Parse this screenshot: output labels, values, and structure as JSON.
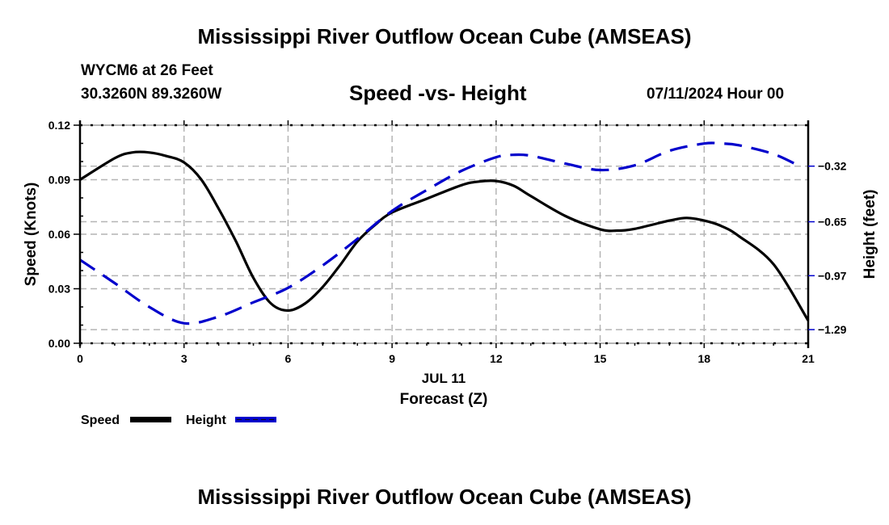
{
  "header": {
    "main_title": "Mississippi River Outflow Ocean Cube (AMSEAS)",
    "station": "WYCM6 at 26 Feet",
    "coordinates": "30.3260N  89.3260W",
    "chart_title": "Speed -vs- Height",
    "datetime": "07/11/2024 Hour 00"
  },
  "footer": {
    "title": "Mississippi River Outflow Ocean Cube (AMSEAS)"
  },
  "chart_data": {
    "type": "line",
    "title": "Speed -vs- Height",
    "xlabel": "Forecast (Z)",
    "xlabel_date": "JUL 11",
    "ylabel": "Speed (Knots)",
    "y2label": "Height (feet)",
    "xlim": [
      0,
      21
    ],
    "ylim": [
      0,
      0.12
    ],
    "y2lim": [
      -1.371,
      -0.077
    ],
    "x_ticks": [
      0,
      3,
      6,
      9,
      12,
      15,
      18,
      21
    ],
    "x_tick_labels": [
      "0",
      "3",
      "6",
      "9",
      "12",
      "15",
      "18",
      "21"
    ],
    "y_ticks": [
      0.0,
      0.03,
      0.06,
      0.09,
      0.12
    ],
    "y_tick_labels": [
      "0.00",
      "0.03",
      "0.06",
      "0.09",
      "0.12"
    ],
    "y2_ticks": [
      -0.32,
      -0.65,
      -0.97,
      -1.29
    ],
    "y2_tick_labels": [
      "−0.32",
      "−0.65",
      "−0.97",
      "−1.29"
    ],
    "grid": true,
    "legend_position": "bottom-left",
    "series": [
      {
        "name": "Speed",
        "axis": "left",
        "color": "#000000",
        "style": "solid",
        "x": [
          0,
          1,
          1.5,
          2,
          2.5,
          3,
          3.5,
          4,
          4.5,
          5,
          5.5,
          6,
          6.5,
          7,
          7.5,
          8,
          8.5,
          9,
          10,
          11,
          11.5,
          12,
          12.5,
          13,
          14,
          15,
          15.5,
          16,
          17,
          17.5,
          18,
          18.5,
          19,
          20,
          21
        ],
        "values": [
          0.09,
          0.1018,
          0.105,
          0.105,
          0.103,
          0.0995,
          0.09,
          0.074,
          0.056,
          0.036,
          0.022,
          0.018,
          0.022,
          0.031,
          0.043,
          0.056,
          0.065,
          0.072,
          0.0795,
          0.087,
          0.089,
          0.0893,
          0.0867,
          0.081,
          0.07,
          0.0627,
          0.062,
          0.063,
          0.0675,
          0.069,
          0.0675,
          0.0645,
          0.059,
          0.0435,
          0.0125
        ]
      },
      {
        "name": "Height",
        "axis": "right",
        "color": "#0000cc",
        "style": "dashed",
        "x": [
          0,
          1,
          2,
          3,
          4,
          5,
          6,
          7,
          8,
          9,
          10,
          11,
          12,
          12.5,
          13,
          14,
          15,
          16,
          17,
          18,
          18.5,
          19,
          20,
          20.8
        ],
        "values": [
          -0.876,
          -1.014,
          -1.156,
          -1.252,
          -1.213,
          -1.128,
          -1.042,
          -0.909,
          -0.752,
          -0.586,
          -0.462,
          -0.348,
          -0.267,
          -0.253,
          -0.258,
          -0.305,
          -0.343,
          -0.315,
          -0.229,
          -0.186,
          -0.186,
          -0.196,
          -0.248,
          -0.325
        ]
      }
    ]
  }
}
